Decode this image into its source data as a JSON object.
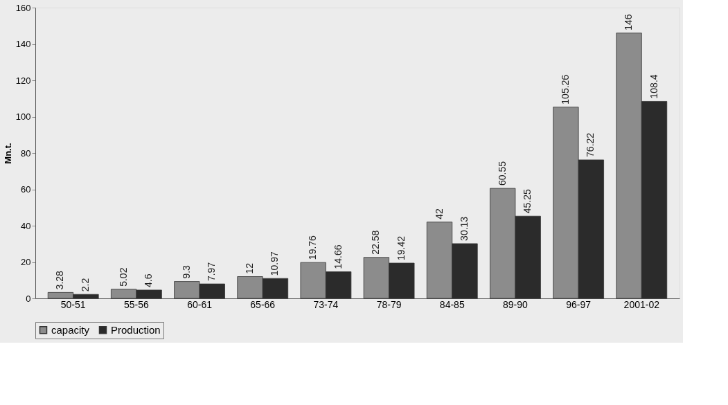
{
  "chart_data": {
    "type": "bar",
    "ylabel": "Mn.t.",
    "categories": [
      "50-51",
      "55-56",
      "60-61",
      "65-66",
      "73-74",
      "78-79",
      "84-85",
      "89-90",
      "96-97",
      "2001-02"
    ],
    "series": [
      {
        "name": "capacity",
        "color": "#8c8c8c",
        "values": [
          3.28,
          5.02,
          9.3,
          12,
          19.76,
          22.58,
          42,
          60.55,
          105.26,
          146
        ]
      },
      {
        "name": "Production",
        "color": "#2b2b2b",
        "values": [
          2.2,
          4.6,
          7.97,
          10.97,
          14.66,
          19.42,
          30.13,
          45.25,
          76.22,
          108.4
        ]
      }
    ],
    "ylim": [
      0,
      160
    ],
    "yticks": [
      0,
      20,
      40,
      60,
      80,
      100,
      120,
      140,
      160
    ],
    "data_labels": true,
    "legend": "bottom",
    "grid": false
  }
}
